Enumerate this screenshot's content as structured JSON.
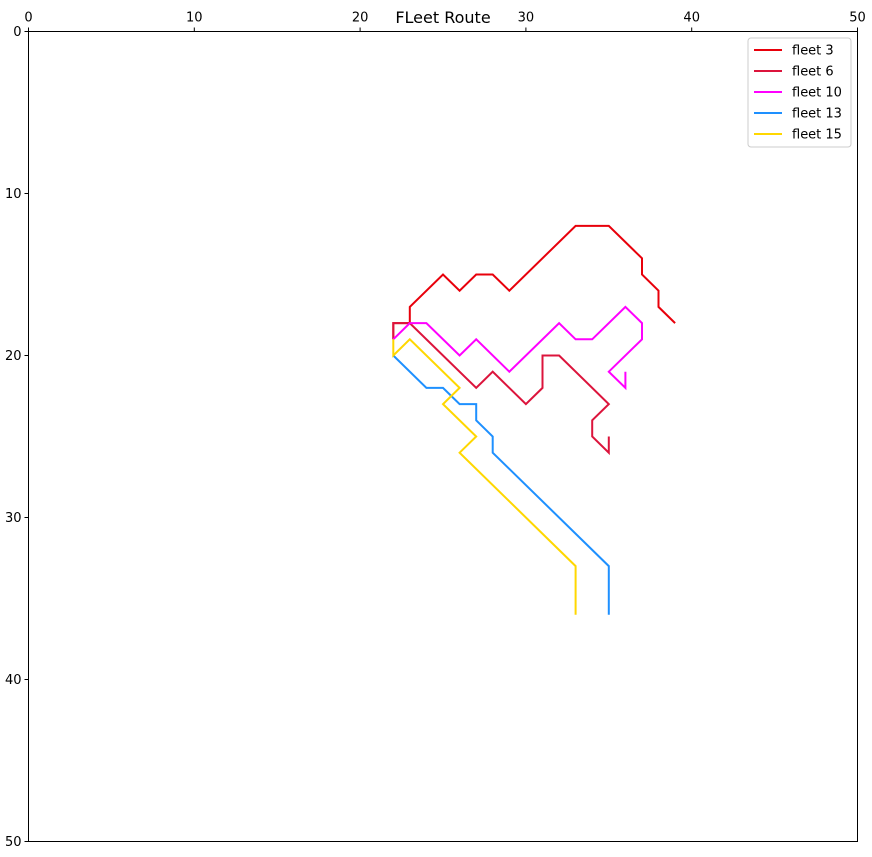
{
  "chart_data": {
    "type": "line",
    "title": "FLeet Route",
    "xlabel": "",
    "ylabel": "",
    "xlim": [
      0,
      50
    ],
    "ylim": [
      0,
      50
    ],
    "y_inverted": true,
    "x_axis_position": "top",
    "xticks": [
      0,
      10,
      20,
      30,
      40,
      50
    ],
    "yticks": [
      0,
      10,
      20,
      30,
      40,
      50
    ],
    "grid": false,
    "legend_position": "top-right",
    "series": [
      {
        "name": "fleet 3",
        "color": "#e8000b",
        "x": [
          39,
          38,
          38,
          37,
          37,
          35,
          33,
          29,
          28,
          27,
          26,
          25,
          23,
          23,
          22,
          22
        ],
        "y": [
          18,
          17,
          16,
          15,
          14,
          12,
          12,
          16,
          15,
          15,
          16,
          15,
          17,
          18,
          18,
          19
        ]
      },
      {
        "name": "fleet 6",
        "color": "#dc143c",
        "x": [
          35,
          35,
          34,
          34,
          35,
          32,
          31,
          31,
          30,
          28,
          27,
          23,
          22,
          22
        ],
        "y": [
          25,
          26,
          25,
          24,
          23,
          20,
          20,
          22,
          23,
          21,
          22,
          18,
          18,
          19
        ]
      },
      {
        "name": "fleet 10",
        "color": "#ff00ff",
        "x": [
          36,
          36,
          35,
          37,
          37,
          36,
          34,
          33,
          32,
          29,
          27,
          26,
          24,
          23,
          22
        ],
        "y": [
          21,
          22,
          21,
          19,
          18,
          17,
          19,
          19,
          18,
          21,
          19,
          20,
          18,
          18,
          19
        ]
      },
      {
        "name": "fleet 13",
        "color": "#1e90ff",
        "x": [
          35,
          35,
          35,
          28,
          28,
          27,
          27,
          26,
          25,
          24,
          22
        ],
        "y": [
          35,
          36,
          33,
          26,
          25,
          24,
          23,
          23,
          22,
          22,
          20
        ]
      },
      {
        "name": "fleet 15",
        "color": "#ffd700",
        "x": [
          33,
          33,
          33,
          26,
          27,
          25,
          26,
          23,
          22,
          22
        ],
        "y": [
          35,
          36,
          33,
          26,
          25,
          23,
          22,
          19,
          20,
          19
        ]
      }
    ]
  }
}
